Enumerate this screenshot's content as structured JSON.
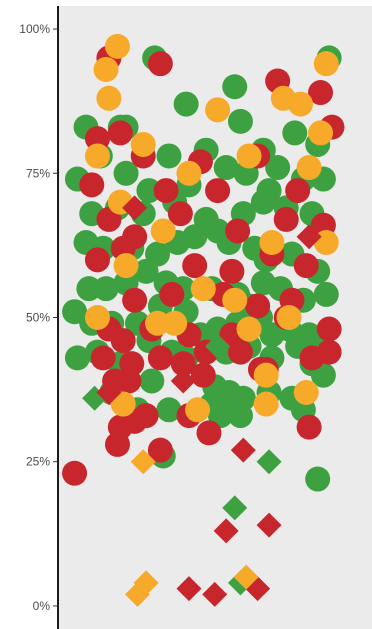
{
  "chart_data": {
    "type": "scatter",
    "title": "",
    "xlabel": "",
    "ylabel": "",
    "ylim": [
      -0.04,
      1.04
    ],
    "xlim": [
      0,
      1
    ],
    "y_ticks": [
      {
        "value": 0.0,
        "label": "0%"
      },
      {
        "value": 0.25,
        "label": "25%"
      },
      {
        "value": 0.5,
        "label": "50%"
      },
      {
        "value": 0.75,
        "label": "75%"
      },
      {
        "value": 1.0,
        "label": "100%"
      }
    ],
    "grid": false,
    "legend": "none",
    "colors": {
      "green": "#3da142",
      "red": "#c8262d",
      "orange": "#f7a92a",
      "panel": "#ebebeb",
      "axis": "#1a1a1a"
    },
    "series": [
      {
        "shape": "circle",
        "color": "green",
        "points": [
          [
            0.92,
            0.95
          ],
          [
            0.31,
            0.95
          ],
          [
            0.59,
            0.9
          ],
          [
            0.42,
            0.87
          ],
          [
            0.61,
            0.84
          ],
          [
            0.21,
            0.83
          ],
          [
            0.07,
            0.83
          ],
          [
            0.12,
            0.78
          ],
          [
            0.8,
            0.82
          ],
          [
            0.88,
            0.8
          ],
          [
            0.49,
            0.79
          ],
          [
            0.36,
            0.78
          ],
          [
            0.69,
            0.79
          ],
          [
            0.04,
            0.74
          ],
          [
            0.21,
            0.75
          ],
          [
            0.29,
            0.72
          ],
          [
            0.43,
            0.73
          ],
          [
            0.56,
            0.76
          ],
          [
            0.63,
            0.75
          ],
          [
            0.74,
            0.76
          ],
          [
            0.83,
            0.74
          ],
          [
            0.9,
            0.74
          ],
          [
            0.09,
            0.68
          ],
          [
            0.18,
            0.69
          ],
          [
            0.27,
            0.68
          ],
          [
            0.38,
            0.7
          ],
          [
            0.49,
            0.67
          ],
          [
            0.53,
            0.65
          ],
          [
            0.62,
            0.68
          ],
          [
            0.69,
            0.7
          ],
          [
            0.77,
            0.69
          ],
          [
            0.86,
            0.68
          ],
          [
            0.07,
            0.63
          ],
          [
            0.13,
            0.62
          ],
          [
            0.23,
            0.62
          ],
          [
            0.32,
            0.61
          ],
          [
            0.39,
            0.63
          ],
          [
            0.45,
            0.64
          ],
          [
            0.57,
            0.63
          ],
          [
            0.66,
            0.62
          ],
          [
            0.7,
            0.6
          ],
          [
            0.79,
            0.61
          ],
          [
            0.88,
            0.58
          ],
          [
            0.08,
            0.55
          ],
          [
            0.14,
            0.55
          ],
          [
            0.21,
            0.56
          ],
          [
            0.28,
            0.58
          ],
          [
            0.35,
            0.56
          ],
          [
            0.41,
            0.55
          ],
          [
            0.51,
            0.55
          ],
          [
            0.6,
            0.54
          ],
          [
            0.64,
            0.52
          ],
          [
            0.69,
            0.56
          ],
          [
            0.75,
            0.55
          ],
          [
            0.83,
            0.53
          ],
          [
            0.91,
            0.54
          ],
          [
            0.03,
            0.51
          ],
          [
            0.09,
            0.49
          ],
          [
            0.16,
            0.49
          ],
          [
            0.25,
            0.49
          ],
          [
            0.33,
            0.52
          ],
          [
            0.42,
            0.51
          ],
          [
            0.47,
            0.47
          ],
          [
            0.53,
            0.48
          ],
          [
            0.6,
            0.49
          ],
          [
            0.68,
            0.5
          ],
          [
            0.72,
            0.47
          ],
          [
            0.78,
            0.48
          ],
          [
            0.85,
            0.47
          ],
          [
            0.89,
            0.46
          ],
          [
            0.04,
            0.43
          ],
          [
            0.11,
            0.44
          ],
          [
            0.19,
            0.42
          ],
          [
            0.29,
            0.46
          ],
          [
            0.37,
            0.44
          ],
          [
            0.42,
            0.43
          ],
          [
            0.56,
            0.44
          ],
          [
            0.64,
            0.45
          ],
          [
            0.72,
            0.43
          ],
          [
            0.81,
            0.45
          ],
          [
            0.86,
            0.42
          ],
          [
            0.9,
            0.4
          ],
          [
            0.16,
            0.37
          ],
          [
            0.3,
            0.39
          ],
          [
            0.52,
            0.38
          ],
          [
            0.57,
            0.37
          ],
          [
            0.62,
            0.36
          ],
          [
            0.71,
            0.37
          ],
          [
            0.79,
            0.36
          ],
          [
            0.25,
            0.34
          ],
          [
            0.36,
            0.34
          ],
          [
            0.54,
            0.33
          ],
          [
            0.61,
            0.33
          ],
          [
            0.83,
            0.34
          ],
          [
            0.34,
            0.26
          ],
          [
            0.88,
            0.22
          ],
          [
            0.57,
            0.34
          ],
          [
            0.51,
            0.35
          ],
          [
            0.19,
            0.83
          ],
          [
            0.71,
            0.72
          ]
        ]
      },
      {
        "shape": "circle",
        "color": "red",
        "points": [
          [
            0.33,
            0.94
          ],
          [
            0.15,
            0.95
          ],
          [
            0.74,
            0.91
          ],
          [
            0.89,
            0.89
          ],
          [
            0.19,
            0.82
          ],
          [
            0.11,
            0.81
          ],
          [
            0.27,
            0.78
          ],
          [
            0.47,
            0.77
          ],
          [
            0.67,
            0.78
          ],
          [
            0.93,
            0.83
          ],
          [
            0.35,
            0.72
          ],
          [
            0.53,
            0.72
          ],
          [
            0.81,
            0.72
          ],
          [
            0.15,
            0.67
          ],
          [
            0.24,
            0.64
          ],
          [
            0.4,
            0.68
          ],
          [
            0.6,
            0.65
          ],
          [
            0.77,
            0.67
          ],
          [
            0.9,
            0.66
          ],
          [
            0.11,
            0.6
          ],
          [
            0.2,
            0.62
          ],
          [
            0.45,
            0.59
          ],
          [
            0.58,
            0.58
          ],
          [
            0.72,
            0.61
          ],
          [
            0.84,
            0.59
          ],
          [
            0.24,
            0.53
          ],
          [
            0.37,
            0.54
          ],
          [
            0.55,
            0.54
          ],
          [
            0.67,
            0.52
          ],
          [
            0.79,
            0.53
          ],
          [
            0.15,
            0.48
          ],
          [
            0.2,
            0.46
          ],
          [
            0.3,
            0.48
          ],
          [
            0.43,
            0.47
          ],
          [
            0.58,
            0.47
          ],
          [
            0.77,
            0.5
          ],
          [
            0.92,
            0.48
          ],
          [
            0.13,
            0.43
          ],
          [
            0.23,
            0.42
          ],
          [
            0.33,
            0.43
          ],
          [
            0.49,
            0.44
          ],
          [
            0.61,
            0.44
          ],
          [
            0.7,
            0.41
          ],
          [
            0.86,
            0.43
          ],
          [
            0.92,
            0.44
          ],
          [
            0.17,
            0.39
          ],
          [
            0.22,
            0.39
          ],
          [
            0.41,
            0.42
          ],
          [
            0.48,
            0.4
          ],
          [
            0.68,
            0.41
          ],
          [
            0.24,
            0.32
          ],
          [
            0.28,
            0.33
          ],
          [
            0.43,
            0.33
          ],
          [
            0.19,
            0.31
          ],
          [
            0.5,
            0.3
          ],
          [
            0.85,
            0.31
          ],
          [
            0.18,
            0.28
          ],
          [
            0.33,
            0.27
          ],
          [
            0.03,
            0.23
          ],
          [
            0.09,
            0.73
          ]
        ]
      },
      {
        "shape": "circle",
        "color": "orange",
        "points": [
          [
            0.18,
            0.97
          ],
          [
            0.14,
            0.93
          ],
          [
            0.91,
            0.94
          ],
          [
            0.76,
            0.88
          ],
          [
            0.82,
            0.87
          ],
          [
            0.15,
            0.88
          ],
          [
            0.53,
            0.86
          ],
          [
            0.89,
            0.82
          ],
          [
            0.27,
            0.8
          ],
          [
            0.11,
            0.78
          ],
          [
            0.64,
            0.78
          ],
          [
            0.85,
            0.76
          ],
          [
            0.43,
            0.75
          ],
          [
            0.19,
            0.7
          ],
          [
            0.34,
            0.65
          ],
          [
            0.72,
            0.63
          ],
          [
            0.91,
            0.63
          ],
          [
            0.21,
            0.59
          ],
          [
            0.59,
            0.53
          ],
          [
            0.48,
            0.55
          ],
          [
            0.11,
            0.5
          ],
          [
            0.78,
            0.5
          ],
          [
            0.32,
            0.49
          ],
          [
            0.38,
            0.49
          ],
          [
            0.64,
            0.48
          ],
          [
            0.7,
            0.4
          ],
          [
            0.84,
            0.37
          ],
          [
            0.2,
            0.35
          ],
          [
            0.46,
            0.34
          ],
          [
            0.7,
            0.35
          ]
        ]
      },
      {
        "shape": "diamond",
        "color": "green",
        "points": [
          [
            0.1,
            0.36
          ],
          [
            0.53,
            0.45
          ],
          [
            0.71,
            0.25
          ],
          [
            0.59,
            0.17
          ],
          [
            0.61,
            0.04
          ],
          [
            0.84,
            0.47
          ]
        ]
      },
      {
        "shape": "diamond",
        "color": "red",
        "points": [
          [
            0.24,
            0.69
          ],
          [
            0.85,
            0.64
          ],
          [
            0.15,
            0.37
          ],
          [
            0.41,
            0.39
          ],
          [
            0.62,
            0.27
          ],
          [
            0.56,
            0.13
          ],
          [
            0.71,
            0.14
          ],
          [
            0.43,
            0.03
          ],
          [
            0.52,
            0.02
          ],
          [
            0.67,
            0.03
          ]
        ]
      },
      {
        "shape": "diamond",
        "color": "orange",
        "points": [
          [
            0.27,
            0.25
          ],
          [
            0.28,
            0.04
          ],
          [
            0.25,
            0.02
          ],
          [
            0.63,
            0.05
          ]
        ]
      }
    ]
  }
}
